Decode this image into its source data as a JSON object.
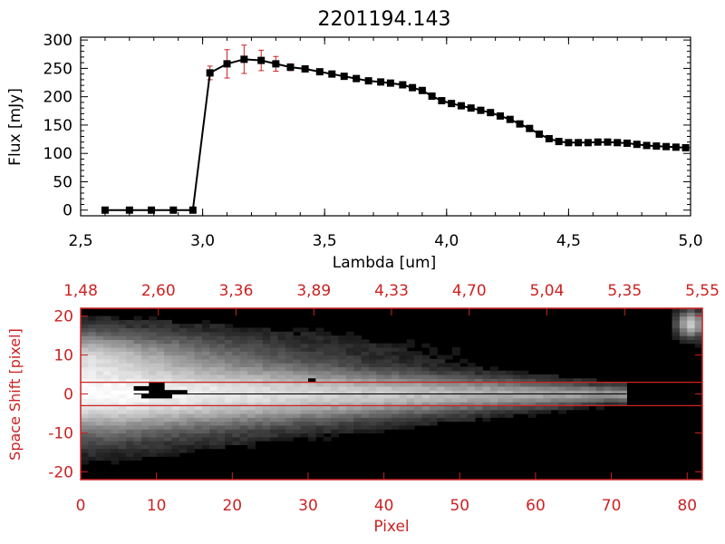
{
  "title": "2201194.143",
  "colors": {
    "black": "#000000",
    "red": "#cc2222",
    "background": "#ffffff"
  },
  "chart_data": [
    {
      "type": "line",
      "title": "2201194.143",
      "xlabel": "Lambda [um]",
      "ylabel": "Flux [mJy]",
      "xlim": [
        2.5,
        5.0
      ],
      "ylim": [
        -10,
        305
      ],
      "x_ticks": [
        "2.5",
        "3.0",
        "3.5",
        "4.0",
        "4.5",
        "5.0"
      ],
      "y_ticks": [
        "0",
        "50",
        "100",
        "150",
        "200",
        "250",
        "300"
      ],
      "grid": false,
      "series": [
        {
          "x": [
            2.6,
            2.7,
            2.79,
            2.88,
            2.96,
            3.03,
            3.1,
            3.17,
            3.24,
            3.3,
            3.36,
            3.42,
            3.48,
            3.53,
            3.58,
            3.63,
            3.68,
            3.73,
            3.77,
            3.82,
            3.86,
            3.9,
            3.94,
            3.98,
            4.02,
            4.06,
            4.1,
            4.14,
            4.18,
            4.22,
            4.26,
            4.3,
            4.34,
            4.38,
            4.42,
            4.46,
            4.5,
            4.54,
            4.58,
            4.62,
            4.66,
            4.7,
            4.74,
            4.78,
            4.82,
            4.86,
            4.9,
            4.94,
            4.98
          ],
          "y": [
            0,
            0,
            0,
            0,
            0,
            242,
            258,
            266,
            264,
            258,
            252,
            249,
            244,
            240,
            236,
            232,
            228,
            226,
            224,
            221,
            216,
            211,
            201,
            193,
            188,
            184,
            180,
            176,
            172,
            166,
            160,
            152,
            144,
            134,
            126,
            121,
            119,
            119,
            119,
            120,
            120,
            119,
            118,
            116,
            114,
            113,
            112,
            111,
            110
          ],
          "yerr": [
            0,
            0,
            0,
            0,
            0,
            12,
            25,
            25,
            18,
            13,
            6,
            5,
            4,
            4,
            3,
            3,
            3,
            3,
            3,
            3,
            3,
            3,
            3,
            3,
            3,
            3,
            3,
            3,
            3,
            3,
            3,
            3,
            3,
            3,
            3,
            3,
            3,
            3,
            3,
            3,
            3,
            3,
            3,
            3,
            3,
            3,
            3,
            3,
            4
          ],
          "marker": "square",
          "color": "#000000",
          "error_color": "#cc2222"
        }
      ]
    },
    {
      "type": "heatmap",
      "xlabel": "Pixel",
      "ylabel": "Space Shift [pixel]",
      "xlim": [
        0,
        82
      ],
      "ylim": [
        -22,
        22
      ],
      "x_ticks": [
        "0",
        "10",
        "20",
        "30",
        "40",
        "50",
        "60",
        "70",
        "80"
      ],
      "y_ticks": [
        "-20",
        "-10",
        "0",
        "10",
        "20"
      ],
      "top_ticks": [
        "1.48",
        "2.60",
        "3.36",
        "3.89",
        "4.33",
        "4.70",
        "5.04",
        "5.35",
        "5.55"
      ],
      "extraction_aperture": [
        -3,
        3
      ],
      "colormap": "grayscale",
      "axis_color": "#cc2222"
    }
  ]
}
